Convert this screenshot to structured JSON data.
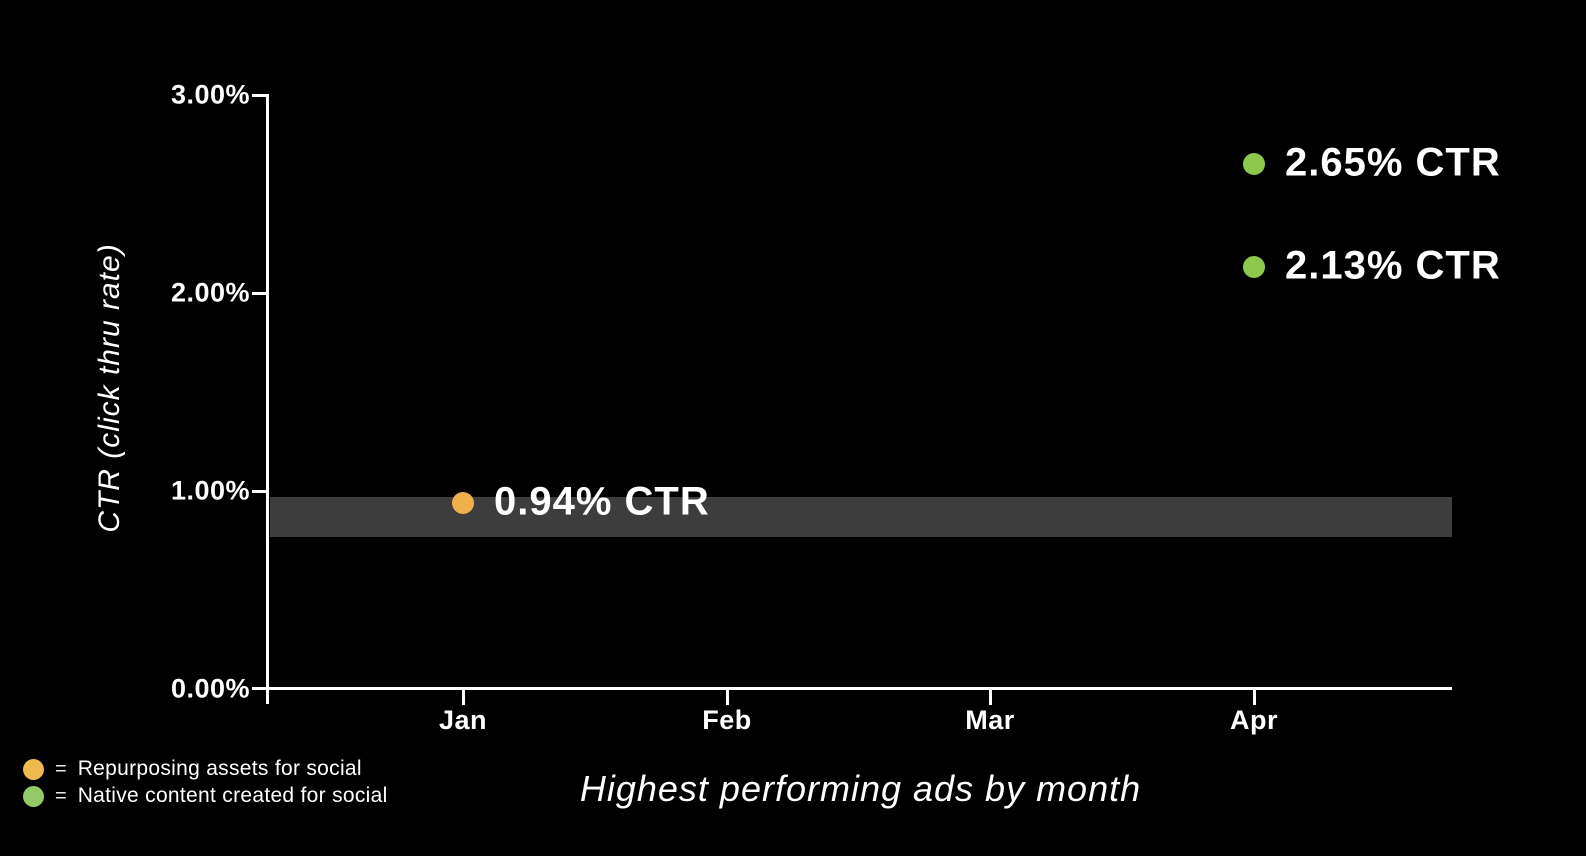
{
  "chart_data": {
    "type": "scatter",
    "title": "Highest performing ads by month",
    "ylabel": "CTR (click thru rate)",
    "xlabel": "",
    "background_color": "#000000",
    "axis_color": "#ffffff",
    "text_color": "#ffffff",
    "grid": false,
    "ylim": [
      0,
      3
    ],
    "x_categories": [
      "Jan",
      "Feb",
      "Mar",
      "Apr"
    ],
    "y_ticks": [
      {
        "value": 3,
        "label": "3.00%"
      },
      {
        "value": 2,
        "label": "2.00%"
      },
      {
        "value": 1,
        "label": "1.00%"
      },
      {
        "value": 0,
        "label": "0.00%"
      }
    ],
    "benchmark_band": {
      "low_value": 0.77,
      "high_value": 0.97,
      "color": "#3d3d3d"
    },
    "series": [
      {
        "name": "Repurposing assets for social",
        "color": "#f0b04c",
        "points": [
          {
            "x": "Jan",
            "y": 0.94,
            "label": "0.94% CTR"
          }
        ]
      },
      {
        "name": "Native content created for social",
        "color": "#8cc84b",
        "points": [
          {
            "x": "Apr",
            "y": 2.65,
            "label": "2.65% CTR"
          },
          {
            "x": "Apr",
            "y": 2.13,
            "label": "2.13% CTR"
          }
        ]
      }
    ],
    "legend": {
      "position": "bottom-left",
      "equals_sign": "=",
      "items": [
        {
          "color": "#f0b94e",
          "label": "Repurposing assets for social"
        },
        {
          "color": "#93c966",
          "label": "Native content created for social"
        }
      ]
    }
  }
}
